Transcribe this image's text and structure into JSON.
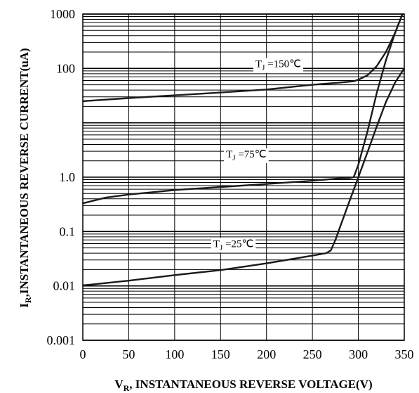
{
  "chart_data": {
    "type": "line",
    "xlabel": "V_R , INSTANTANEOUS REVERSE VOLTAGE(V)",
    "xlabel_parts": {
      "main": "V",
      "sub": "R",
      "rest": ", INSTANTANEOUS REVERSE VOLTAGE(V)"
    },
    "ylabel": "I_R,INSTANTANEOUS REVERSE CURRENT(uA)",
    "ylabel_parts": {
      "main": "I",
      "sub": "R",
      "rest": ",INSTANTANEOUS REVERSE CURRENT(uA)"
    },
    "xlim": [
      0,
      350
    ],
    "ylim": [
      0.001,
      1000
    ],
    "yscale": "log",
    "xticks": [
      0,
      50,
      100,
      150,
      200,
      250,
      300,
      350
    ],
    "xtick_labels": [
      "0",
      "50",
      "100",
      "150",
      "200",
      "250",
      "300",
      "350"
    ],
    "yticks": [
      0.001,
      0.01,
      0.1,
      1,
      10,
      100,
      1000
    ],
    "ytick_labels": [
      "0.001",
      "0.01",
      "0.1",
      "1.0",
      "",
      "100",
      "1000"
    ],
    "grid": true,
    "series": [
      {
        "label_parts": {
          "pre": "T",
          "sub": "J",
          "post": " =150℃"
        },
        "label_at": [
          188,
          105
        ],
        "x": [
          0,
          50,
          100,
          150,
          200,
          250,
          280,
          295,
          300,
          310,
          320,
          330,
          340,
          348
        ],
        "y": [
          25,
          28.5,
          32,
          36,
          41,
          50,
          55,
          58,
          62,
          75,
          110,
          200,
          450,
          1000
        ]
      },
      {
        "label_parts": {
          "pre": "T",
          "sub": "J",
          "post": " =75℃"
        },
        "label_at": [
          156,
          2.3
        ],
        "x": [
          0,
          25,
          50,
          100,
          150,
          200,
          250,
          280,
          290,
          295,
          300,
          310,
          320,
          330,
          340,
          348
        ],
        "y": [
          0.33,
          0.42,
          0.48,
          0.58,
          0.66,
          0.75,
          0.86,
          0.95,
          0.96,
          1.0,
          1.7,
          7,
          35,
          140,
          450,
          1000
        ]
      },
      {
        "label_parts": {
          "pre": "T",
          "sub": "J",
          "post": " =25℃"
        },
        "label_at": [
          142,
          0.052
        ],
        "x": [
          0,
          50,
          100,
          150,
          200,
          250,
          265,
          270,
          275,
          280,
          290,
          300,
          310,
          320,
          330,
          340,
          350
        ],
        "y": [
          0.0102,
          0.0125,
          0.0158,
          0.0195,
          0.026,
          0.036,
          0.04,
          0.045,
          0.07,
          0.12,
          0.35,
          1.0,
          2.9,
          8.5,
          24,
          55,
          100
        ]
      }
    ]
  }
}
